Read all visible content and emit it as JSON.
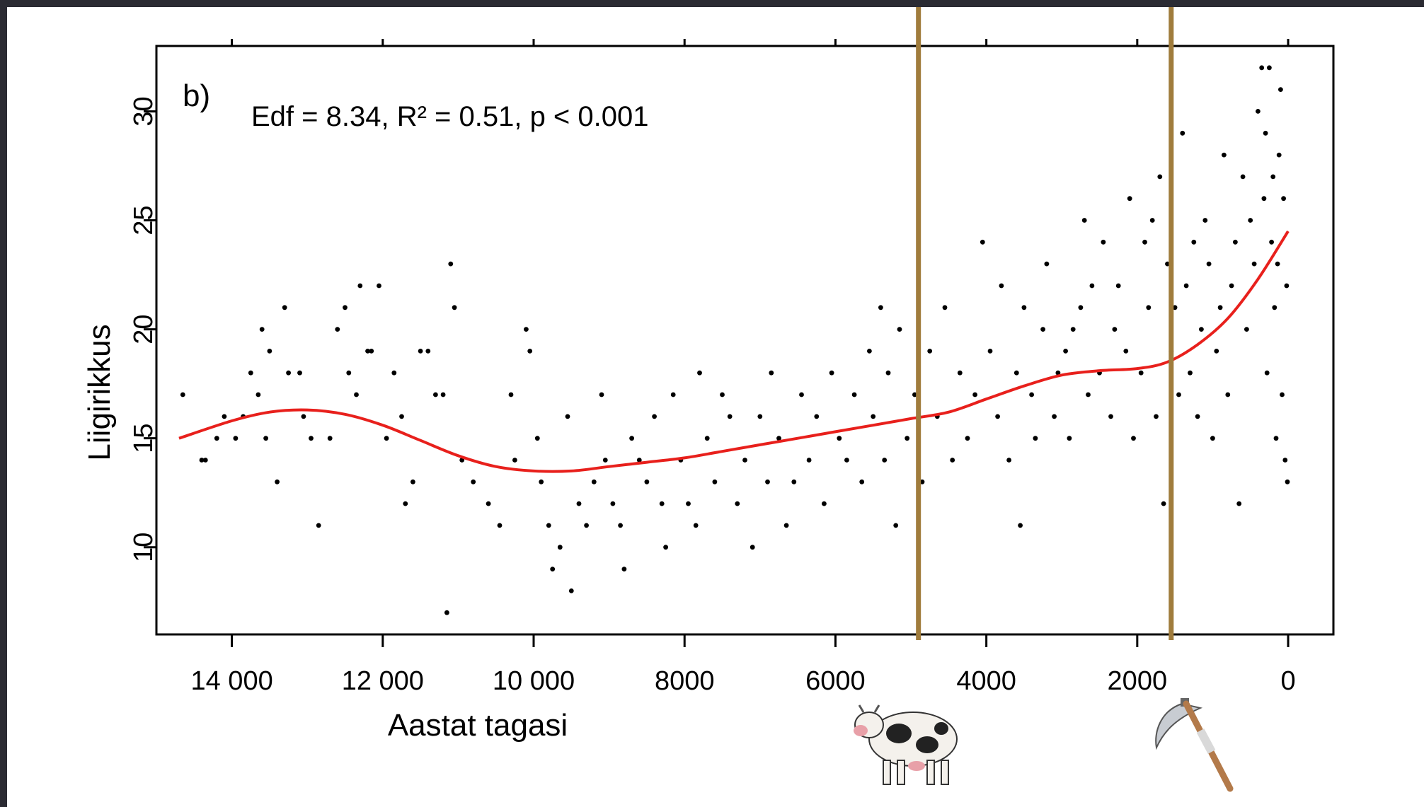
{
  "chart_data": {
    "type": "scatter",
    "title": "",
    "panel_label": "b)",
    "annotation": "Edf = 8.34, R² = 0.51, p < 0.001",
    "xlabel": "Aastat tagasi",
    "ylabel": "Liigirikkus",
    "x_reversed": true,
    "xlim": [
      15000,
      -600
    ],
    "ylim": [
      6,
      33
    ],
    "x_ticks": [
      14000,
      12000,
      10000,
      8000,
      6000,
      4000,
      2000,
      0
    ],
    "x_tick_labels": [
      "14 000",
      "12 000",
      "10 000",
      "8000",
      "6000",
      "4000",
      "2000",
      "0"
    ],
    "y_ticks": [
      10,
      15,
      20,
      25,
      30
    ],
    "y_tick_labels": [
      "10",
      "15",
      "20",
      "25",
      "30"
    ],
    "grid": false,
    "colors": {
      "points": "#000000",
      "fit_line": "#e8201c",
      "markers": "#a07c3c"
    },
    "vertical_markers": [
      {
        "x": 4900,
        "icon": "cow-icon"
      },
      {
        "x": 1550,
        "icon": "scythe-icon"
      }
    ],
    "points": [
      [
        14650,
        17
      ],
      [
        14400,
        14
      ],
      [
        14350,
        14
      ],
      [
        14200,
        15
      ],
      [
        14100,
        16
      ],
      [
        13950,
        15
      ],
      [
        13850,
        16
      ],
      [
        13750,
        18
      ],
      [
        13650,
        17
      ],
      [
        13600,
        20
      ],
      [
        13550,
        15
      ],
      [
        13500,
        19
      ],
      [
        13400,
        13
      ],
      [
        13300,
        21
      ],
      [
        13250,
        18
      ],
      [
        13100,
        18
      ],
      [
        13050,
        16
      ],
      [
        12950,
        15
      ],
      [
        12850,
        11
      ],
      [
        12700,
        15
      ],
      [
        12600,
        20
      ],
      [
        12500,
        21
      ],
      [
        12450,
        18
      ],
      [
        12350,
        17
      ],
      [
        12300,
        22
      ],
      [
        12200,
        19
      ],
      [
        12150,
        19
      ],
      [
        12050,
        22
      ],
      [
        11950,
        15
      ],
      [
        11850,
        18
      ],
      [
        11750,
        16
      ],
      [
        11700,
        12
      ],
      [
        11600,
        13
      ],
      [
        11500,
        19
      ],
      [
        11400,
        19
      ],
      [
        11300,
        17
      ],
      [
        11200,
        17
      ],
      [
        11150,
        7
      ],
      [
        11100,
        23
      ],
      [
        11050,
        21
      ],
      [
        10950,
        14
      ],
      [
        10800,
        13
      ],
      [
        10600,
        12
      ],
      [
        10450,
        11
      ],
      [
        10300,
        17
      ],
      [
        10250,
        14
      ],
      [
        10100,
        20
      ],
      [
        10050,
        19
      ],
      [
        9950,
        15
      ],
      [
        9900,
        13
      ],
      [
        9800,
        11
      ],
      [
        9750,
        9
      ],
      [
        9650,
        10
      ],
      [
        9550,
        16
      ],
      [
        9500,
        8
      ],
      [
        9400,
        12
      ],
      [
        9300,
        11
      ],
      [
        9200,
        13
      ],
      [
        9100,
        17
      ],
      [
        9050,
        14
      ],
      [
        8950,
        12
      ],
      [
        8850,
        11
      ],
      [
        8800,
        9
      ],
      [
        8700,
        15
      ],
      [
        8600,
        14
      ],
      [
        8500,
        13
      ],
      [
        8400,
        16
      ],
      [
        8300,
        12
      ],
      [
        8250,
        10
      ],
      [
        8150,
        17
      ],
      [
        8050,
        14
      ],
      [
        7950,
        12
      ],
      [
        7850,
        11
      ],
      [
        7800,
        18
      ],
      [
        7700,
        15
      ],
      [
        7600,
        13
      ],
      [
        7500,
        17
      ],
      [
        7400,
        16
      ],
      [
        7300,
        12
      ],
      [
        7200,
        14
      ],
      [
        7100,
        10
      ],
      [
        7000,
        16
      ],
      [
        6900,
        13
      ],
      [
        6850,
        18
      ],
      [
        6750,
        15
      ],
      [
        6650,
        11
      ],
      [
        6550,
        13
      ],
      [
        6450,
        17
      ],
      [
        6350,
        14
      ],
      [
        6250,
        16
      ],
      [
        6150,
        12
      ],
      [
        6050,
        18
      ],
      [
        5950,
        15
      ],
      [
        5850,
        14
      ],
      [
        5750,
        17
      ],
      [
        5650,
        13
      ],
      [
        5550,
        19
      ],
      [
        5500,
        16
      ],
      [
        5400,
        21
      ],
      [
        5350,
        14
      ],
      [
        5300,
        18
      ],
      [
        5200,
        11
      ],
      [
        5150,
        20
      ],
      [
        5050,
        15
      ],
      [
        4950,
        17
      ],
      [
        4850,
        13
      ],
      [
        4750,
        19
      ],
      [
        4650,
        16
      ],
      [
        4550,
        21
      ],
      [
        4450,
        14
      ],
      [
        4350,
        18
      ],
      [
        4250,
        15
      ],
      [
        4150,
        17
      ],
      [
        4050,
        24
      ],
      [
        3950,
        19
      ],
      [
        3850,
        16
      ],
      [
        3800,
        22
      ],
      [
        3700,
        14
      ],
      [
        3600,
        18
      ],
      [
        3550,
        11
      ],
      [
        3500,
        21
      ],
      [
        3400,
        17
      ],
      [
        3350,
        15
      ],
      [
        3250,
        20
      ],
      [
        3200,
        23
      ],
      [
        3100,
        16
      ],
      [
        3050,
        18
      ],
      [
        2950,
        19
      ],
      [
        2900,
        15
      ],
      [
        2850,
        20
      ],
      [
        2750,
        21
      ],
      [
        2700,
        25
      ],
      [
        2650,
        17
      ],
      [
        2600,
        22
      ],
      [
        2500,
        18
      ],
      [
        2450,
        24
      ],
      [
        2350,
        16
      ],
      [
        2300,
        20
      ],
      [
        2250,
        22
      ],
      [
        2150,
        19
      ],
      [
        2100,
        26
      ],
      [
        2050,
        15
      ],
      [
        1950,
        18
      ],
      [
        1900,
        24
      ],
      [
        1850,
        21
      ],
      [
        1800,
        25
      ],
      [
        1750,
        16
      ],
      [
        1700,
        27
      ],
      [
        1650,
        12
      ],
      [
        1600,
        23
      ],
      [
        1550,
        19
      ],
      [
        1500,
        21
      ],
      [
        1450,
        17
      ],
      [
        1400,
        29
      ],
      [
        1350,
        22
      ],
      [
        1300,
        18
      ],
      [
        1250,
        24
      ],
      [
        1200,
        16
      ],
      [
        1150,
        20
      ],
      [
        1100,
        25
      ],
      [
        1050,
        23
      ],
      [
        1000,
        15
      ],
      [
        950,
        19
      ],
      [
        900,
        21
      ],
      [
        850,
        28
      ],
      [
        800,
        17
      ],
      [
        750,
        22
      ],
      [
        700,
        24
      ],
      [
        650,
        12
      ],
      [
        600,
        27
      ],
      [
        550,
        20
      ],
      [
        500,
        25
      ],
      [
        450,
        23
      ],
      [
        400,
        30
      ],
      [
        350,
        32
      ],
      [
        320,
        26
      ],
      [
        300,
        29
      ],
      [
        280,
        18
      ],
      [
        250,
        32
      ],
      [
        220,
        24
      ],
      [
        200,
        27
      ],
      [
        180,
        21
      ],
      [
        160,
        15
      ],
      [
        140,
        23
      ],
      [
        120,
        28
      ],
      [
        100,
        31
      ],
      [
        80,
        17
      ],
      [
        60,
        26
      ],
      [
        40,
        14
      ],
      [
        20,
        22
      ],
      [
        10,
        13
      ]
    ],
    "series": [
      {
        "type": "line",
        "x": [
          14700,
          14000,
          13500,
          13000,
          12500,
          12000,
          11500,
          11000,
          10500,
          10000,
          9500,
          9000,
          8500,
          8000,
          7500,
          7000,
          6500,
          6000,
          5500,
          5000,
          4500,
          4000,
          3500,
          3000,
          2500,
          2000,
          1600,
          1200,
          800,
          400,
          0
        ],
        "y": [
          15.0,
          15.8,
          16.2,
          16.3,
          16.1,
          15.6,
          14.9,
          14.2,
          13.7,
          13.5,
          13.5,
          13.7,
          13.9,
          14.1,
          14.4,
          14.7,
          15.0,
          15.3,
          15.6,
          15.9,
          16.2,
          16.8,
          17.4,
          17.9,
          18.1,
          18.2,
          18.5,
          19.3,
          20.5,
          22.3,
          24.5
        ]
      }
    ]
  }
}
